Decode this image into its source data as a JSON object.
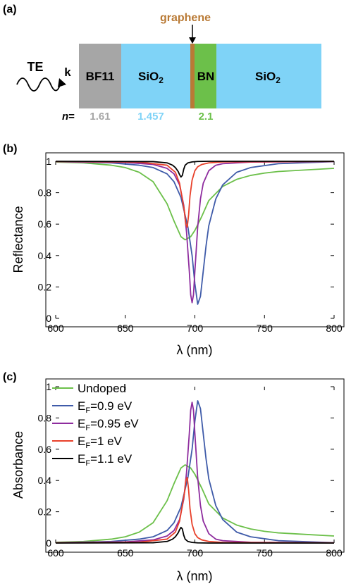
{
  "panels": {
    "a": "(a)",
    "b": "(b)",
    "c": "(c)"
  },
  "structure": {
    "wave_label": "TE",
    "k_label": "k",
    "graphene_label": "graphene",
    "n_prefix": "n",
    "n_equals": "=",
    "layers": [
      {
        "name": "BF11",
        "n": "1.61",
        "color": "#a6a6a6",
        "n_color": "#a6a6a6"
      },
      {
        "name": "SiO",
        "sub": "2",
        "n": "1.457",
        "color": "#7fd3f7",
        "n_color": "#7fd3f7"
      },
      {
        "name": "BN",
        "n": "2.1",
        "color": "#6cc04a",
        "n_color": "#6cc04a"
      },
      {
        "name": "SiO",
        "sub": "2",
        "n": "",
        "color": "#7fd3f7",
        "n_color": "#7fd3f7"
      }
    ],
    "graphene_color": "#b97a35"
  },
  "chart_data": [
    {
      "type": "line",
      "panel": "b",
      "xlabel": "λ (nm)",
      "ylabel": "Reflectance",
      "xlim": [
        600,
        800
      ],
      "ylim": [
        0,
        1
      ],
      "xticks": [
        "600",
        "650",
        "700",
        "750",
        "800"
      ],
      "yticks": [
        "0",
        "0.2",
        "0.4",
        "0.6",
        "0.8",
        "1"
      ],
      "grid": false,
      "series": [
        {
          "key": "undoped",
          "color": "#6cc04a",
          "x": [
            600,
            620,
            640,
            650,
            660,
            670,
            680,
            685,
            690,
            693,
            697,
            700,
            705,
            710,
            720,
            730,
            740,
            750,
            760,
            780,
            800
          ],
          "values": [
            0.995,
            0.99,
            0.975,
            0.96,
            0.93,
            0.87,
            0.73,
            0.62,
            0.52,
            0.5,
            0.52,
            0.56,
            0.65,
            0.75,
            0.84,
            0.885,
            0.91,
            0.925,
            0.935,
            0.945,
            0.955
          ]
        },
        {
          "key": "ef09",
          "color": "#3f5ba9",
          "x": [
            600,
            640,
            660,
            670,
            680,
            685,
            690,
            695,
            698,
            700,
            702,
            704,
            706,
            708,
            710,
            715,
            720,
            730,
            740,
            760,
            800
          ],
          "values": [
            0.998,
            0.99,
            0.975,
            0.96,
            0.92,
            0.87,
            0.77,
            0.58,
            0.4,
            0.22,
            0.09,
            0.14,
            0.3,
            0.46,
            0.59,
            0.76,
            0.85,
            0.93,
            0.96,
            0.985,
            0.998
          ]
        },
        {
          "key": "ef095",
          "color": "#8e2c9e",
          "x": [
            600,
            650,
            670,
            680,
            685,
            689,
            692,
            694,
            696,
            697,
            698,
            699,
            700,
            702,
            704,
            706,
            710,
            715,
            720,
            740,
            800
          ],
          "values": [
            0.998,
            0.993,
            0.98,
            0.955,
            0.92,
            0.85,
            0.72,
            0.55,
            0.3,
            0.15,
            0.1,
            0.15,
            0.3,
            0.58,
            0.76,
            0.86,
            0.94,
            0.975,
            0.985,
            0.995,
            0.999
          ]
        },
        {
          "key": "ef1",
          "color": "#e8402a",
          "x": [
            600,
            660,
            680,
            686,
            689,
            691,
            692.5,
            693.5,
            694.5,
            695.5,
            696.5,
            698,
            700,
            702,
            705,
            710,
            720,
            800
          ],
          "values": [
            0.999,
            0.995,
            0.975,
            0.93,
            0.86,
            0.76,
            0.68,
            0.6,
            0.58,
            0.66,
            0.78,
            0.88,
            0.94,
            0.965,
            0.98,
            0.99,
            0.996,
            0.999
          ]
        },
        {
          "key": "ef11",
          "color": "#000000",
          "x": [
            600,
            670,
            680,
            684,
            686,
            688,
            689,
            690,
            691,
            692,
            693,
            695,
            698,
            702,
            710,
            800
          ],
          "values": [
            1.0,
            0.998,
            0.99,
            0.975,
            0.96,
            0.935,
            0.915,
            0.9,
            0.91,
            0.95,
            0.975,
            0.99,
            0.996,
            0.999,
            1.0,
            1.0
          ]
        }
      ]
    },
    {
      "type": "line",
      "panel": "c",
      "xlabel": "λ (nm)",
      "ylabel": "Absorbance",
      "xlim": [
        600,
        800
      ],
      "ylim": [
        0,
        1
      ],
      "xticks": [
        "600",
        "650",
        "700",
        "750",
        "800"
      ],
      "yticks": [
        "0",
        "0.2",
        "0.4",
        "0.6",
        "0.8",
        "1"
      ],
      "grid": false,
      "legend": "top-left",
      "series": [
        {
          "key": "undoped",
          "name": "Undoped",
          "color": "#6cc04a",
          "x": [
            600,
            620,
            640,
            650,
            660,
            670,
            680,
            685,
            690,
            693,
            697,
            700,
            705,
            710,
            720,
            730,
            740,
            750,
            760,
            780,
            800
          ],
          "values": [
            0.005,
            0.01,
            0.025,
            0.04,
            0.07,
            0.13,
            0.27,
            0.38,
            0.48,
            0.5,
            0.48,
            0.44,
            0.35,
            0.25,
            0.16,
            0.115,
            0.09,
            0.075,
            0.065,
            0.055,
            0.045
          ]
        },
        {
          "key": "ef09",
          "name_main": "E",
          "name_sub": "F",
          "name_rest": "=0.9 eV",
          "color": "#3f5ba9",
          "x": [
            600,
            640,
            660,
            670,
            680,
            685,
            690,
            695,
            698,
            700,
            702,
            704,
            706,
            708,
            710,
            715,
            720,
            730,
            740,
            760,
            800
          ],
          "values": [
            0.002,
            0.01,
            0.025,
            0.04,
            0.08,
            0.13,
            0.23,
            0.42,
            0.6,
            0.78,
            0.91,
            0.86,
            0.7,
            0.54,
            0.41,
            0.24,
            0.15,
            0.07,
            0.04,
            0.015,
            0.002
          ]
        },
        {
          "key": "ef095",
          "name_main": "E",
          "name_sub": "F",
          "name_rest": "=0.95 eV",
          "color": "#8e2c9e",
          "x": [
            600,
            650,
            670,
            680,
            685,
            689,
            692,
            694,
            696,
            697,
            698,
            699,
            700,
            702,
            704,
            706,
            710,
            715,
            720,
            740,
            800
          ],
          "values": [
            0.002,
            0.007,
            0.02,
            0.045,
            0.08,
            0.15,
            0.28,
            0.45,
            0.7,
            0.85,
            0.9,
            0.85,
            0.7,
            0.42,
            0.24,
            0.14,
            0.06,
            0.025,
            0.015,
            0.005,
            0.001
          ]
        },
        {
          "key": "ef1",
          "name_main": "E",
          "name_sub": "F",
          "name_rest": "=1 eV",
          "color": "#e8402a",
          "x": [
            600,
            660,
            680,
            686,
            689,
            691,
            692.5,
            693.5,
            694.5,
            695.5,
            696.5,
            698,
            700,
            702,
            705,
            710,
            720,
            800
          ],
          "values": [
            0.001,
            0.005,
            0.025,
            0.07,
            0.14,
            0.24,
            0.32,
            0.4,
            0.42,
            0.34,
            0.22,
            0.12,
            0.06,
            0.035,
            0.02,
            0.01,
            0.004,
            0.001
          ]
        },
        {
          "key": "ef11",
          "name_main": "E",
          "name_sub": "F",
          "name_rest": "=1.1 eV",
          "color": "#000000",
          "x": [
            600,
            670,
            680,
            684,
            686,
            688,
            689,
            690,
            691,
            692,
            693,
            695,
            698,
            702,
            710,
            800
          ],
          "values": [
            0.0,
            0.002,
            0.01,
            0.025,
            0.04,
            0.065,
            0.085,
            0.1,
            0.09,
            0.05,
            0.025,
            0.01,
            0.004,
            0.001,
            0.0,
            0.0
          ]
        }
      ]
    }
  ]
}
